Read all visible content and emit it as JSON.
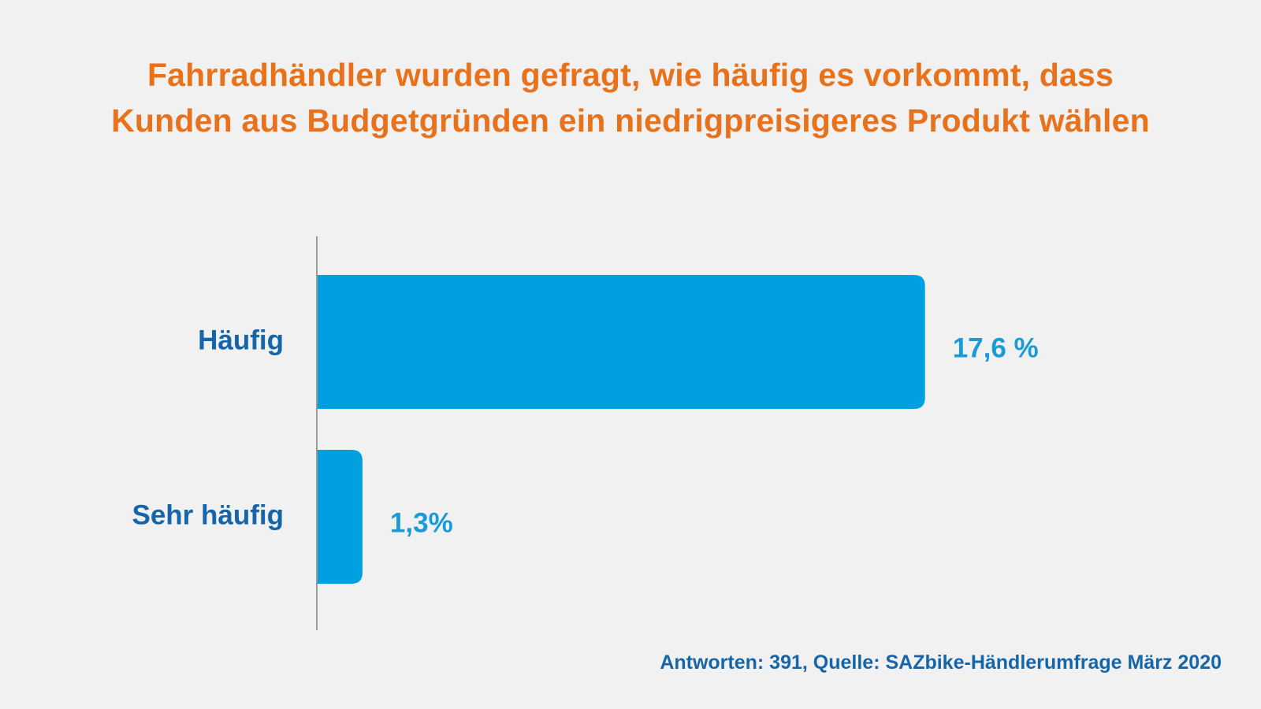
{
  "colors": {
    "background": "#f1f1f1",
    "title": "#e8711c",
    "bar": "#009fe0",
    "category_label": "#1565a8",
    "value_label": "#1a9ad6",
    "axis": "#9a9a9a"
  },
  "chart_data": {
    "type": "bar",
    "orientation": "horizontal",
    "title_lines": [
      "Fahrradhändler wurden gefragt, wie häufig es vorkommt, dass",
      "Kunden aus Budgetgründen ein niedrigpreisigeres Produkt wählen"
    ],
    "categories": [
      "Häufig",
      "Sehr häufig"
    ],
    "values": [
      17.6,
      1.3
    ],
    "value_labels": [
      "17,6 %",
      "1,3%"
    ],
    "unit": "%",
    "xlim": [
      0,
      19
    ],
    "grid": false,
    "legend": "none",
    "source": "Antworten: 391, Quelle: SAZbike-Händlerumfrage März 2020"
  }
}
